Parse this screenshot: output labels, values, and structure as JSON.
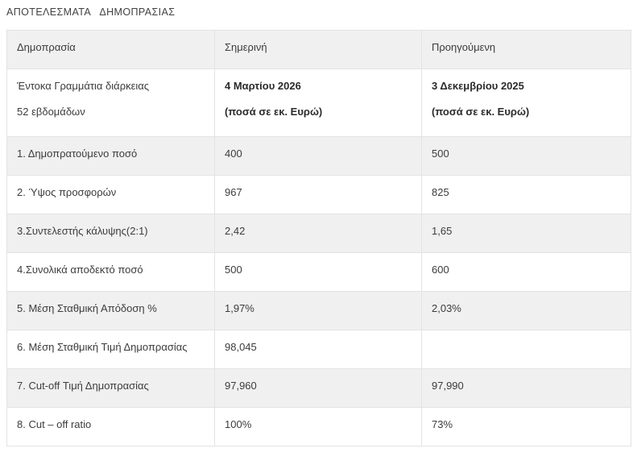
{
  "page": {
    "title": "ΑΠΟΤΕΛΕΣΜΑΤΑ   ΔΗΜΟΠΡΑΣΙΑΣ"
  },
  "colors": {
    "row_stripe": "#f0f0f1",
    "border": "#e3e3e4",
    "text": "#3c3c3c"
  },
  "table": {
    "headers": {
      "auction": "Δημοπρασία",
      "current": "Σημερινή",
      "previous": "Προηγούμενη"
    },
    "subheader": {
      "label_line1": "Έντοκα Γραμμάτια διάρκειας",
      "label_line2": "52 εβδομάδων",
      "current_line1": "4 Μαρτίου 2026",
      "current_line2": "(ποσά σε εκ. Ευρώ)",
      "previous_line1": "3 Δεκεμβρίου 2025",
      "previous_line2": "(ποσά σε εκ. Ευρώ)"
    },
    "rows": [
      {
        "label": "1. Δημοπρατούμενο ποσό",
        "current": "400",
        "previous": "500"
      },
      {
        "label": "2. Ύψος προσφορών",
        "current": "967",
        "previous": "825"
      },
      {
        "label": "3.Συντελεστής κάλυψης(2:1)",
        "current": "2,42",
        "previous": "1,65"
      },
      {
        "label": "4.Συνολικά αποδεκτό ποσό",
        "current": "500",
        "previous": "600"
      },
      {
        "label": "5. Μέση Σταθμική Απόδοση %",
        "current": "1,97%",
        "previous": "2,03%"
      },
      {
        "label": "6. Μέση Σταθμική Τιμή Δημοπρασίας",
        "current": "98,045",
        "previous": ""
      },
      {
        "label": "7. Cut-off Τιμή Δημοπρασίας",
        "current": "97,960",
        "previous": "97,990"
      },
      {
        "label": "8. Cut – off ratio",
        "current": "100%",
        "previous": "73%"
      }
    ]
  }
}
